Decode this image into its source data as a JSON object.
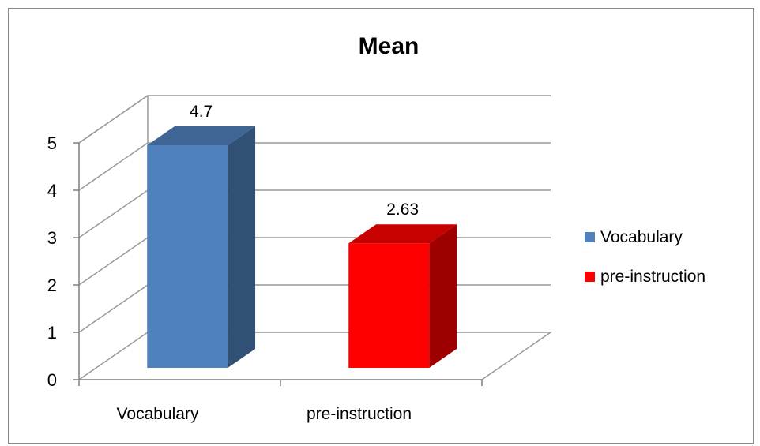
{
  "chart_data": {
    "type": "bar",
    "title": "Mean",
    "xlabel": "",
    "ylabel": "",
    "categories": [
      "Vocabulary",
      "pre-instruction"
    ],
    "values": [
      4.7,
      2.63
    ],
    "data_labels": [
      "4.7",
      "2.63"
    ],
    "ylim": [
      0,
      5
    ],
    "yticks": [
      "0",
      "1",
      "2",
      "3",
      "4",
      "5"
    ],
    "grid": true,
    "style": "3d-column",
    "legend_position": "right",
    "legend": [
      "Vocabulary",
      "pre-instruction"
    ],
    "colors": [
      "#4f81bd",
      "#ff0000"
    ]
  }
}
